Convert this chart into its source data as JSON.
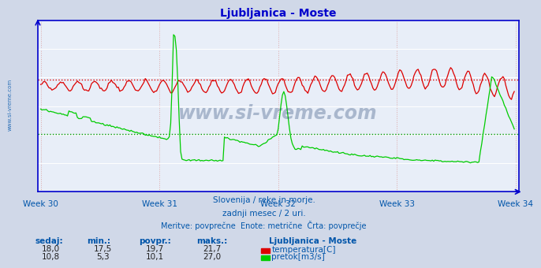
{
  "title": "Ljubljanica - Moste",
  "title_color": "#0000cc",
  "bg_color": "#d0d8e8",
  "plot_bg_color": "#e8eef8",
  "grid_color": "#ffffff",
  "axis_color": "#0000cc",
  "text_color": "#0055aa",
  "x_tick_labels": [
    "Week 30",
    "Week 31",
    "Week 32",
    "Week 33",
    "Week 34"
  ],
  "n_points": 336,
  "temp_color": "#dd0000",
  "flow_color": "#00cc00",
  "temp_avg_line": 19.7,
  "flow_avg_line": 10.1,
  "temp_avg_color": "#dd0000",
  "flow_avg_color": "#009900",
  "temp_min": 17.5,
  "temp_max": 21.7,
  "temp_current": 18.0,
  "temp_avg": 19.7,
  "flow_min": 5.3,
  "flow_max": 27.0,
  "flow_current": 10.8,
  "flow_avg": 10.1,
  "ylabel_temp": "temperatura[C]",
  "ylabel_flow": "pretok[m3/s]",
  "subtitle1": "Slovenija / reke in morje.",
  "subtitle2": "zadnji mesec / 2 uri.",
  "subtitle3": "Meritve: povprečne  Enote: metrične  Črta: povprečje",
  "watermark": "www.si-vreme.com",
  "watermark_color": "#1a3a6a",
  "side_text": "www.si-vreme.com",
  "ymin": 0,
  "ymax": 30
}
